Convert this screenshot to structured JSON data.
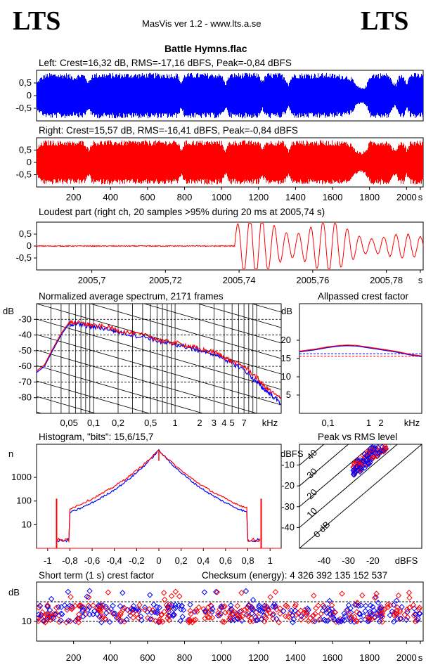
{
  "header": {
    "logo_left": "LTS",
    "logo_right": "LTS",
    "app_title": "MasVis ver 1.2 - www.lts.a.se",
    "file_title": "Battle Hymns.flac"
  },
  "colors": {
    "left": "#0000ff",
    "right": "#ff0000",
    "grid": "#000000"
  },
  "panels": {
    "left_wave": {
      "label": "Left: Crest=16,32 dB, RMS=-17,16 dBFS, Peak=-0,84 dBFS"
    },
    "right_wave": {
      "label": "Right: Crest=15,57 dB, RMS=-16,41 dBFS, Peak=-0,84 dBFS"
    },
    "loudest": {
      "label": "Loudest part (right ch, 20 samples >95% during 20 ms at 2005,74 s)"
    },
    "spectrum": {
      "label": "Normalized average spectrum, 2171 frames"
    },
    "allpass": {
      "label": "Allpassed crest factor"
    },
    "histogram": {
      "label": "Histogram, \"bits\": 15,6/15,7"
    },
    "peakrms": {
      "label": "Peak vs RMS level"
    },
    "shortterm": {
      "label": "Short term (1 s) crest factor",
      "checksum": "Checksum (energy):  4 326 392 135 152 537"
    }
  },
  "chart_data": [
    {
      "id": "left_wave",
      "type": "area",
      "ylim": [
        -1,
        1
      ],
      "y_ticks": [
        "0,5",
        "0",
        "-0,5"
      ],
      "x_ticks": [],
      "series": [
        {
          "x": [
            0,
            20,
            40,
            60,
            80,
            100,
            120,
            140,
            160,
            180,
            200,
            220,
            240,
            260,
            280,
            300,
            320,
            340,
            360,
            380,
            400,
            420,
            440,
            460,
            480,
            500,
            520,
            540,
            560,
            580,
            600,
            620,
            640,
            660,
            680,
            700,
            720,
            740,
            760,
            780,
            800,
            820,
            840,
            860,
            880,
            900,
            920,
            940,
            960,
            980,
            1000,
            1020,
            1040,
            1060,
            1080,
            1100,
            1120,
            1140,
            1160,
            1180,
            1200,
            1220,
            1240,
            1260,
            1280,
            1300,
            1320,
            1340,
            1360,
            1380,
            1400,
            1420,
            1440,
            1460,
            1480,
            1500,
            1520,
            1540,
            1560,
            1580,
            1600,
            1620,
            1640,
            1660,
            1680,
            1700,
            1720,
            1740,
            1760,
            1780,
            1800,
            1820,
            1840,
            1860,
            1880,
            1900,
            1920,
            1940,
            1960,
            1980,
            2000,
            2020,
            2040,
            2060,
            2080
          ],
          "values": [
            0.55,
            0.75,
            0.85,
            0.9,
            0.9,
            0.9,
            0.88,
            0.9,
            0.9,
            0.85,
            0.8,
            0.85,
            0.9,
            0.85,
            0.55,
            0.9,
            0.9,
            0.9,
            0.9,
            0.9,
            0.9,
            0.9,
            0.9,
            0.9,
            0.9,
            0.9,
            0.9,
            0.9,
            0.9,
            0.9,
            0.9,
            0.9,
            0.9,
            0.9,
            0.9,
            0.9,
            0.9,
            0.9,
            0.9,
            0.55,
            0.9,
            0.9,
            0.9,
            0.9,
            0.9,
            0.9,
            0.9,
            0.9,
            0.9,
            0.9,
            0.85,
            0.5,
            0.85,
            0.9,
            0.9,
            0.9,
            0.9,
            0.9,
            0.9,
            0.9,
            0.9,
            0.6,
            0.9,
            0.9,
            0.9,
            0.9,
            0.9,
            0.8,
            0.5,
            0.85,
            0.9,
            0.9,
            0.9,
            0.9,
            0.9,
            0.9,
            0.9,
            0.9,
            0.9,
            0.9,
            0.88,
            0.85,
            0.85,
            0.85,
            0.8,
            0.75,
            0.5,
            0.35,
            0.3,
            0.4,
            0.85,
            0.9,
            0.9,
            0.9,
            0.9,
            0.9,
            0.6,
            0.45,
            0.85,
            0.9,
            0.55,
            0.9,
            0.9,
            0.9,
            0.88
          ]
        }
      ]
    },
    {
      "id": "right_wave",
      "type": "area",
      "ylim": [
        -1,
        1
      ],
      "y_ticks": [
        "0,5",
        "0",
        "-0,5"
      ],
      "x_ticks": [
        "200",
        "400",
        "600",
        "800",
        "1000",
        "1200",
        "1400",
        "1600",
        "1800",
        "2000",
        "s"
      ],
      "series": [
        {
          "x": [
            0,
            20,
            40,
            60,
            80,
            100,
            120,
            140,
            160,
            180,
            200,
            220,
            240,
            260,
            280,
            300,
            320,
            340,
            360,
            380,
            400,
            420,
            440,
            460,
            480,
            500,
            520,
            540,
            560,
            580,
            600,
            620,
            640,
            660,
            680,
            700,
            720,
            740,
            760,
            780,
            800,
            820,
            840,
            860,
            880,
            900,
            920,
            940,
            960,
            980,
            1000,
            1020,
            1040,
            1060,
            1080,
            1100,
            1120,
            1140,
            1160,
            1180,
            1200,
            1220,
            1240,
            1260,
            1280,
            1300,
            1320,
            1340,
            1360,
            1380,
            1400,
            1420,
            1440,
            1460,
            1480,
            1500,
            1520,
            1540,
            1560,
            1580,
            1600,
            1620,
            1640,
            1660,
            1680,
            1700,
            1720,
            1740,
            1760,
            1780,
            1800,
            1820,
            1840,
            1860,
            1880,
            1900,
            1920,
            1940,
            1960,
            1980,
            2000,
            2020,
            2040,
            2060,
            2080
          ],
          "values": [
            0.6,
            0.8,
            0.9,
            0.9,
            0.9,
            0.9,
            0.88,
            0.9,
            0.9,
            0.88,
            0.85,
            0.88,
            0.9,
            0.88,
            0.55,
            0.9,
            0.9,
            0.9,
            0.9,
            0.9,
            0.9,
            0.9,
            0.9,
            0.9,
            0.9,
            0.9,
            0.9,
            0.9,
            0.9,
            0.9,
            0.9,
            0.9,
            0.9,
            0.9,
            0.9,
            0.9,
            0.9,
            0.9,
            0.9,
            0.55,
            0.9,
            0.9,
            0.9,
            0.9,
            0.9,
            0.9,
            0.9,
            0.9,
            0.9,
            0.9,
            0.88,
            0.5,
            0.88,
            0.9,
            0.9,
            0.9,
            0.9,
            0.9,
            0.9,
            0.9,
            0.9,
            0.6,
            0.9,
            0.9,
            0.9,
            0.9,
            0.9,
            0.85,
            0.5,
            0.88,
            0.9,
            0.9,
            0.9,
            0.9,
            0.9,
            0.9,
            0.9,
            0.9,
            0.9,
            0.9,
            0.9,
            0.88,
            0.88,
            0.88,
            0.85,
            0.8,
            0.55,
            0.45,
            0.4,
            0.55,
            0.88,
            0.9,
            0.9,
            0.9,
            0.9,
            0.9,
            0.65,
            0.5,
            0.88,
            0.9,
            0.55,
            0.9,
            0.9,
            0.9,
            0.9
          ]
        }
      ]
    },
    {
      "id": "loudest",
      "type": "line",
      "xlim": [
        2005.685,
        2005.79
      ],
      "ylim": [
        -1,
        1
      ],
      "y_ticks": [
        "0,5",
        "0",
        "-0,5"
      ],
      "x_ticks": [
        "2005,7",
        "2005,72",
        "2005,74",
        "2005,76",
        "2005,78",
        "s"
      ]
    },
    {
      "id": "spectrum",
      "type": "line",
      "x_ticks": [
        "0,05",
        "0,1",
        "0,2",
        "0,5",
        "1",
        "2",
        "3",
        "4",
        "5",
        "7",
        "kHz"
      ],
      "y_ticks": [
        "-30",
        "-40",
        "-50",
        "-60",
        "-70",
        "-80"
      ],
      "ylabel": "dB",
      "series": [
        {
          "x": [
            0.02,
            0.025,
            0.03,
            0.04,
            0.05,
            0.06,
            0.08,
            0.1,
            0.15,
            0.2,
            0.3,
            0.5,
            0.7,
            1,
            1.5,
            2,
            3,
            4,
            5,
            7,
            10,
            12,
            15,
            20
          ],
          "values": [
            -64,
            -60,
            -52,
            -40,
            -33,
            -33,
            -34,
            -35,
            -36,
            -38,
            -40,
            -42,
            -45,
            -46,
            -48,
            -50,
            -52,
            -55,
            -58,
            -62,
            -70,
            -74,
            -78,
            -84
          ]
        },
        {
          "x": [
            0.02,
            0.025,
            0.03,
            0.04,
            0.05,
            0.06,
            0.08,
            0.1,
            0.15,
            0.2,
            0.3,
            0.5,
            0.7,
            1,
            1.5,
            2,
            3,
            4,
            5,
            7,
            10,
            12,
            15,
            20
          ],
          "values": [
            -63,
            -59,
            -51,
            -39,
            -32,
            -32,
            -33,
            -34,
            -35,
            -37,
            -39,
            -41,
            -44,
            -45,
            -47,
            -49,
            -51,
            -54,
            -57,
            -60,
            -67,
            -72,
            -76,
            -81
          ]
        }
      ]
    },
    {
      "id": "allpass",
      "type": "line",
      "x_ticks": [
        "0,1",
        "1",
        "2",
        "kHz"
      ],
      "y_ticks": [
        "20",
        "15",
        "10",
        "5"
      ],
      "ylabel": "dB",
      "series": [
        {
          "x": [
            0.02,
            0.05,
            0.1,
            0.2,
            0.3,
            0.5,
            1,
            2,
            5,
            10,
            20
          ],
          "values": [
            16.8,
            17.4,
            18.0,
            18.4,
            18.5,
            18.4,
            17.9,
            17.4,
            16.7,
            16.0,
            15.5
          ]
        },
        {
          "x": [
            0.02,
            0.05,
            0.1,
            0.2,
            0.3,
            0.5,
            1,
            2,
            5,
            10,
            20
          ],
          "values": [
            17.0,
            17.6,
            18.2,
            18.6,
            18.7,
            18.6,
            18.1,
            17.6,
            16.9,
            16.2,
            15.7
          ]
        }
      ]
    },
    {
      "id": "histogram",
      "type": "line",
      "x_ticks": [
        "-1",
        "-0,8",
        "-0,6",
        "-0,4",
        "-0,2",
        "0",
        "0,2",
        "0,4",
        "0,6",
        "0,8",
        "1"
      ],
      "y_ticks": [
        "1000",
        "100",
        "10"
      ],
      "ylabel": "n"
    },
    {
      "id": "peakrms",
      "type": "scatter",
      "x_ticks": [
        "-40",
        "-30",
        "-20",
        "dBFS"
      ],
      "y_ticks": [
        "dBFS",
        "-10",
        "-20",
        "-30",
        "-40"
      ],
      "diag_labels": [
        "0 dB",
        "10",
        "20",
        "30",
        "40"
      ]
    },
    {
      "id": "shortterm",
      "type": "scatter",
      "y_ticks": [
        "10"
      ],
      "ylabel": "dB",
      "x_ticks": [
        "200",
        "400",
        "600",
        "800",
        "1000",
        "1200",
        "1400",
        "1600",
        "1800",
        "2000",
        "s"
      ]
    }
  ]
}
